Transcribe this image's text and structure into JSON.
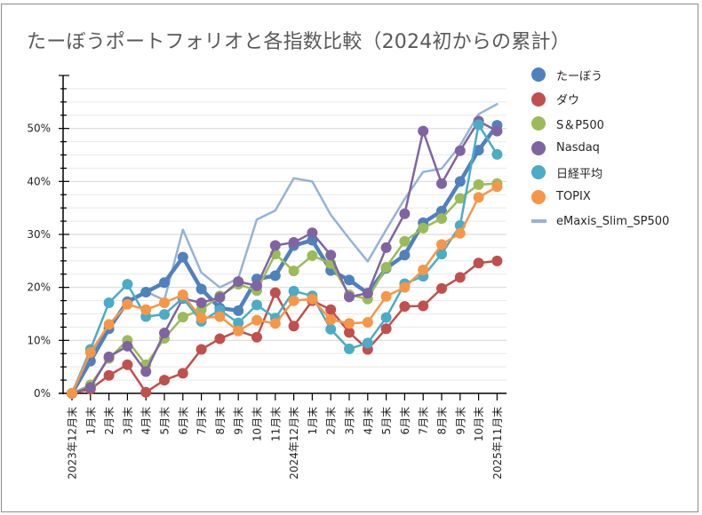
{
  "chart_data": {
    "type": "line",
    "title": "たーぼうポートフォリオと各指数比較（2024初からの累計）",
    "xlabel": "",
    "ylabel": "",
    "ylim": [
      0,
      60
    ],
    "y_major_ticks": [
      0,
      10,
      20,
      30,
      40,
      50
    ],
    "y_tick_labels": [
      "0%",
      "10%",
      "20%",
      "30%",
      "40%",
      "50%"
    ],
    "y_minor_step": 2.5,
    "grid": true,
    "legend_position": "right",
    "categories": [
      "2023年12月末",
      "1月末",
      "2月末",
      "3月末",
      "4月末",
      "5月末",
      "6月末",
      "7月末",
      "8月末",
      "9月末",
      "10月末",
      "11月末",
      "2024年12月末",
      "1月末",
      "2月末",
      "3月末",
      "4月末",
      "5月末",
      "6月末",
      "7月末",
      "8月末",
      "9月末",
      "10月末",
      "2025年11月末"
    ],
    "series": [
      {
        "name": "たーぼう",
        "color": "#4F81BD",
        "style": "line-markers-thick",
        "values": [
          0,
          6.1,
          12.2,
          17.3,
          19.1,
          20.9,
          25.7,
          19.7,
          16.1,
          15.6,
          21.6,
          22.2,
          27.9,
          28.9,
          23.2,
          21.4,
          18.9,
          23.6,
          26.1,
          32.2,
          34.4,
          40.0,
          45.9,
          50.6
        ]
      },
      {
        "name": "ダウ",
        "color": "#C0504D",
        "style": "line-markers",
        "values": [
          0,
          0.8,
          3.4,
          5.4,
          0.2,
          2.5,
          3.8,
          8.3,
          10.3,
          11.8,
          10.6,
          19.0,
          12.7,
          17.5,
          15.8,
          11.5,
          8.3,
          12.2,
          16.4,
          16.5,
          19.8,
          21.9,
          24.6,
          25.0
        ]
      },
      {
        "name": "S＆P500",
        "color": "#9BBB59",
        "style": "line-markers",
        "values": [
          0,
          1.6,
          6.6,
          10.0,
          5.4,
          10.4,
          14.4,
          15.8,
          18.4,
          20.6,
          19.4,
          26.3,
          23.1,
          26.0,
          24.5,
          18.6,
          17.8,
          23.8,
          28.7,
          31.2,
          33.0,
          36.8,
          39.4,
          39.6
        ]
      },
      {
        "name": "Nasdaq",
        "color": "#8064A2",
        "style": "line-markers",
        "values": [
          0,
          1.1,
          6.9,
          8.9,
          4.1,
          11.4,
          17.9,
          17.1,
          18.1,
          21.1,
          20.3,
          27.9,
          28.5,
          30.3,
          26.1,
          18.2,
          18.9,
          27.5,
          33.9,
          49.5,
          39.6,
          45.8,
          51.4,
          49.5
        ]
      },
      {
        "name": "日経平均",
        "color": "#4BACC6",
        "style": "line-markers",
        "values": [
          0,
          8.3,
          17.1,
          20.6,
          14.5,
          14.9,
          18.0,
          13.6,
          15.7,
          13.3,
          16.7,
          14.2,
          19.3,
          18.4,
          12.1,
          8.4,
          9.5,
          14.3,
          20.7,
          22.1,
          26.3,
          31.7,
          50.7,
          45.1
        ]
      },
      {
        "name": "TOPIX",
        "color": "#F79646",
        "style": "line-markers",
        "values": [
          0,
          7.7,
          13.0,
          16.8,
          15.8,
          17.1,
          18.6,
          14.2,
          14.5,
          11.8,
          13.8,
          13.2,
          17.5,
          17.8,
          13.9,
          13.2,
          13.4,
          18.3,
          20.0,
          23.3,
          28.1,
          30.2,
          37.0,
          39.0
        ]
      },
      {
        "name": "eMaxis_Slim_SP500",
        "color": "#95B3D7",
        "style": "line",
        "values": [
          0,
          7.0,
          12.5,
          17.5,
          19.2,
          17.6,
          30.9,
          22.8,
          20.0,
          21.7,
          32.8,
          34.5,
          40.6,
          40.0,
          33.7,
          29.2,
          24.9,
          30.9,
          36.7,
          41.8,
          42.4,
          46.8,
          52.7,
          54.6
        ]
      }
    ]
  }
}
